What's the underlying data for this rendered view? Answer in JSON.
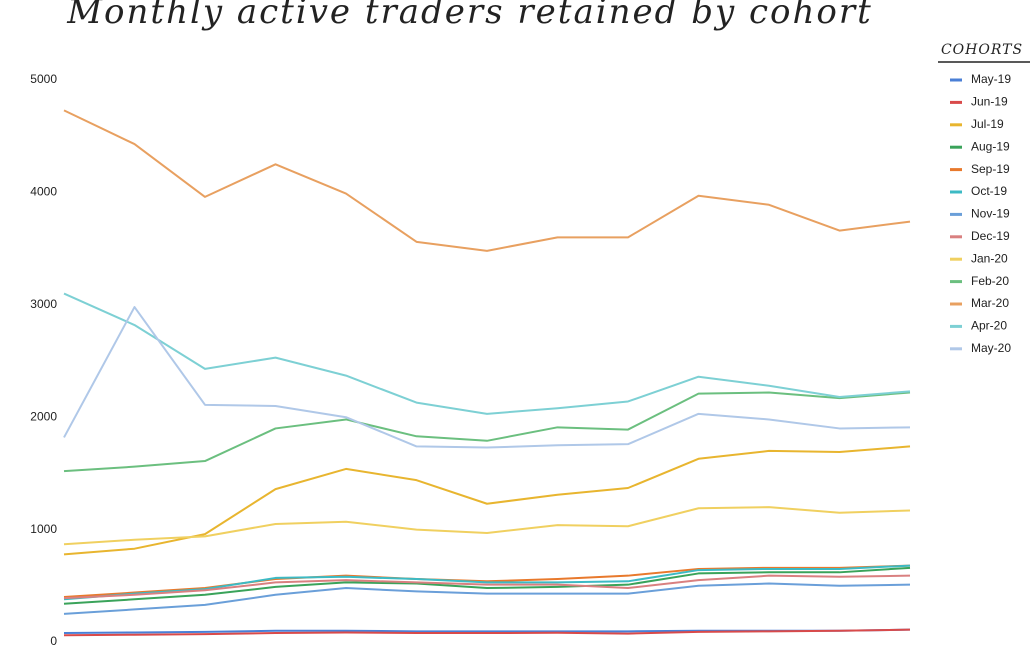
{
  "chart_data": {
    "type": "line",
    "title": "Monthly active traders retained by cohort",
    "legend_title": "COHORTS",
    "categories": [
      null,
      null,
      null,
      null,
      null,
      null,
      null,
      null,
      null,
      null,
      null,
      null,
      null
    ],
    "ylim": [
      0,
      5000
    ],
    "yticks": [
      0,
      1000,
      2000,
      3000,
      4000,
      5000
    ],
    "grid": false,
    "legend": "right",
    "series": [
      {
        "name": "May-19",
        "color": "#4a7fd6",
        "values": [
          80,
          85,
          90,
          100,
          100,
          95,
          95,
          95,
          95,
          100,
          100,
          100,
          110
        ]
      },
      {
        "name": "Jun-19",
        "color": "#d94a4a",
        "values": [
          60,
          65,
          70,
          80,
          85,
          80,
          80,
          82,
          75,
          90,
          95,
          100,
          110
        ]
      },
      {
        "name": "Jul-19",
        "color": "#e8b52f",
        "values": [
          780,
          830,
          960,
          1360,
          1540,
          1440,
          1230,
          1310,
          1370,
          1630,
          1700,
          1690,
          1740
        ]
      },
      {
        "name": "Aug-19",
        "color": "#3aa35a",
        "values": [
          340,
          380,
          420,
          490,
          530,
          520,
          480,
          490,
          510,
          610,
          620,
          620,
          660
        ]
      },
      {
        "name": "Sep-19",
        "color": "#e8792c",
        "values": [
          400,
          440,
          480,
          560,
          590,
          560,
          540,
          560,
          590,
          650,
          660,
          660,
          680
        ]
      },
      {
        "name": "Oct-19",
        "color": "#3cbac4",
        "values": [
          380,
          430,
          470,
          570,
          580,
          560,
          530,
          530,
          540,
          640,
          650,
          650,
          680
        ]
      },
      {
        "name": "Nov-19",
        "color": "#6a9fd9",
        "values": [
          250,
          290,
          330,
          420,
          480,
          450,
          430,
          430,
          430,
          500,
          520,
          500,
          510
        ]
      },
      {
        "name": "Dec-19",
        "color": "#d98080",
        "values": [
          390,
          420,
          460,
          530,
          550,
          530,
          510,
          510,
          480,
          550,
          590,
          580,
          590
        ]
      },
      {
        "name": "Jan-20",
        "color": "#f0d060",
        "values": [
          870,
          910,
          940,
          1050,
          1070,
          1000,
          970,
          1040,
          1030,
          1190,
          1200,
          1150,
          1170
        ]
      },
      {
        "name": "Feb-20",
        "color": "#6bbf7f",
        "values": [
          1520,
          1560,
          1610,
          1900,
          1980,
          1830,
          1790,
          1910,
          1890,
          2210,
          2220,
          2170,
          2220
        ]
      },
      {
        "name": "Mar-20",
        "color": "#e8a060",
        "values": [
          4730,
          4430,
          3960,
          4250,
          3990,
          3560,
          3480,
          3600,
          3600,
          3970,
          3890,
          3660,
          3740
        ]
      },
      {
        "name": "Apr-20",
        "color": "#7dd0d4",
        "values": [
          3100,
          2820,
          2430,
          2530,
          2370,
          2130,
          2030,
          2080,
          2140,
          2360,
          2280,
          2180,
          2230
        ]
      },
      {
        "name": "May-20",
        "color": "#b0c8e8",
        "values": [
          1820,
          2980,
          2110,
          2100,
          2000,
          1740,
          1730,
          1750,
          1760,
          2030,
          1980,
          1900,
          1910
        ]
      }
    ]
  }
}
